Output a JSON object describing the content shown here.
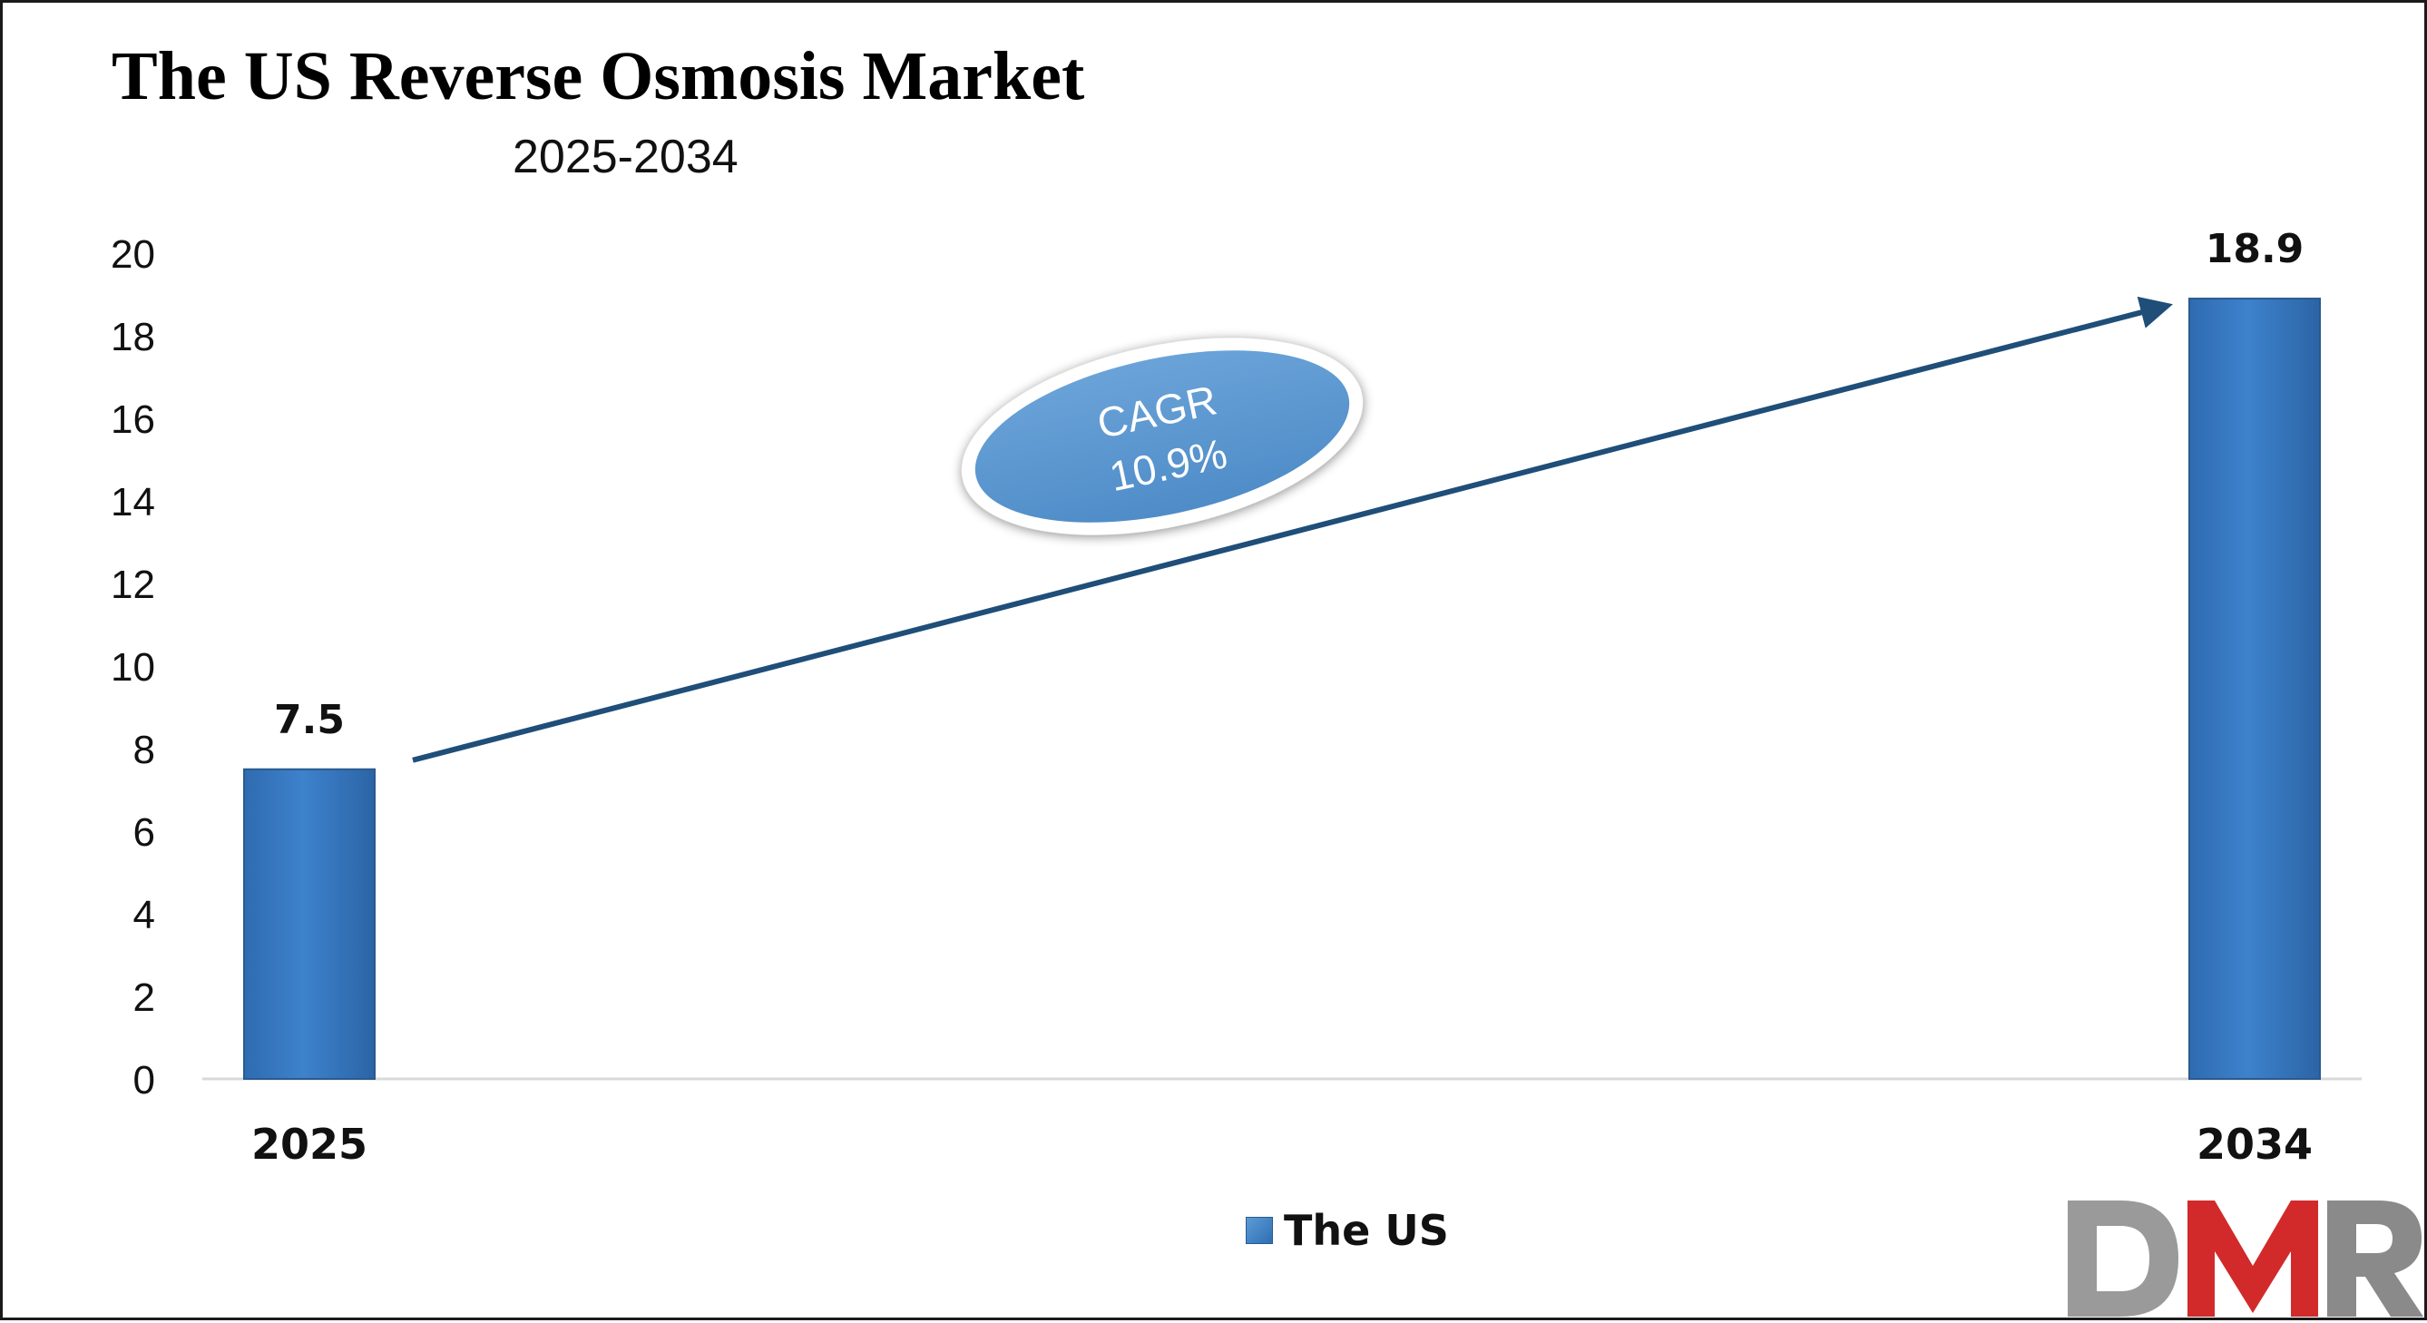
{
  "title": "The US Reverse Osmosis Market",
  "subtitle": "2025-2034",
  "annotation": {
    "line1": "CAGR",
    "line2": "10.9%"
  },
  "legend": {
    "label": "The US",
    "color": "#3a7cc4"
  },
  "logo": {
    "text": "DMR",
    "colors": [
      "#9a9a9a",
      "#d22a2a",
      "#8a8a8a"
    ]
  },
  "chart_data": {
    "type": "bar",
    "title": "The US Reverse Osmosis Market",
    "subtitle": "2025-2034",
    "categories": [
      "2025",
      "2034"
    ],
    "series": [
      {
        "name": "The US",
        "values": [
          7.5,
          18.9
        ]
      }
    ],
    "data_labels": [
      "7.5",
      "18.9"
    ],
    "ylim": [
      0,
      20
    ],
    "yticks": [
      0,
      2,
      4,
      6,
      8,
      10,
      12,
      14,
      16,
      18,
      20
    ],
    "grid": false,
    "legend_position": "bottom",
    "bar_color": "#3a7cc4",
    "arrow_color": "#1f4e79"
  }
}
